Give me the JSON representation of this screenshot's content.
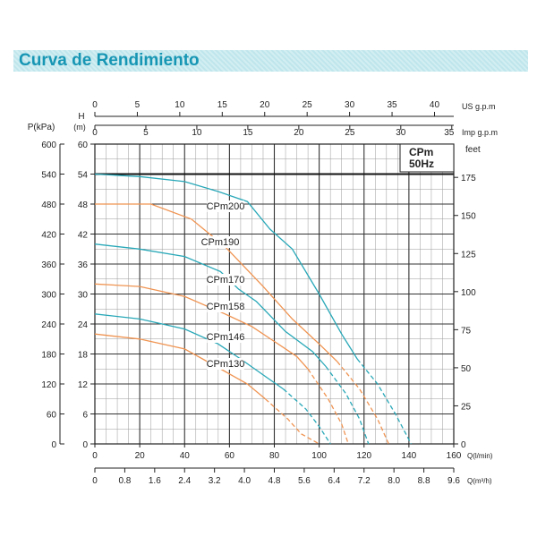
{
  "header": {
    "title": "Curva de Rendimiento"
  },
  "chart_data": {
    "type": "line",
    "model_box": [
      "CPm",
      "50Hz"
    ],
    "axes": {
      "q_lmin": {
        "label": "Q(l/min)",
        "ticks": [
          0,
          20,
          40,
          60,
          80,
          100,
          120,
          140,
          160
        ],
        "range": [
          0,
          160
        ]
      },
      "q_m3h": {
        "label": "Q(m³/h)",
        "ticks": [
          "0",
          "0.8",
          "1.6",
          "2.4",
          "3.2",
          "4.0",
          "4.8",
          "5.6",
          "6.4",
          "7.2",
          "8.0",
          "8.8",
          "9.6"
        ]
      },
      "us_gpm": {
        "label": "US  g.p.m",
        "ticks": [
          0,
          5,
          10,
          15,
          20,
          25,
          30,
          35,
          40
        ]
      },
      "imp_gpm": {
        "label": "Imp  g.p.m",
        "ticks": [
          0,
          5,
          10,
          15,
          20,
          25,
          30,
          35
        ]
      },
      "head_m": {
        "label": "H",
        "unit": "(m)",
        "ticks": [
          0,
          6,
          12,
          18,
          24,
          30,
          36,
          42,
          48,
          54,
          60
        ],
        "range": [
          0,
          60
        ]
      },
      "pressure_kpa": {
        "label": "P(kPa)",
        "ticks": [
          0,
          60,
          120,
          180,
          240,
          300,
          360,
          420,
          480,
          540,
          600
        ]
      },
      "feet": {
        "label": "feet",
        "ticks": [
          0,
          25,
          50,
          75,
          100,
          125,
          150,
          175
        ]
      }
    },
    "series": [
      {
        "name": "CPm200",
        "color": "#29a8b8",
        "solid": [
          [
            0,
            54
          ],
          [
            20,
            53.5
          ],
          [
            40,
            52.5
          ],
          [
            55,
            50.5
          ],
          [
            68,
            48.5
          ],
          [
            78,
            43
          ],
          [
            88,
            39
          ],
          [
            100,
            30
          ],
          [
            110,
            22
          ],
          [
            117,
            17
          ]
        ],
        "dashed": [
          [
            117,
            17
          ],
          [
            126,
            12
          ],
          [
            134,
            6
          ],
          [
            141,
            0
          ]
        ]
      },
      {
        "name": "CPm190",
        "color": "#f09452",
        "solid": [
          [
            0,
            48
          ],
          [
            25,
            48
          ],
          [
            43,
            45
          ],
          [
            58,
            39.5
          ],
          [
            75,
            31.5
          ],
          [
            88,
            25
          ],
          [
            100,
            20
          ],
          [
            108,
            16.5
          ]
        ],
        "dashed": [
          [
            108,
            16.5
          ],
          [
            118,
            11
          ],
          [
            126,
            5
          ],
          [
            131,
            0
          ]
        ]
      },
      {
        "name": "CPm170",
        "color": "#29a8b8",
        "solid": [
          [
            0,
            40
          ],
          [
            20,
            39
          ],
          [
            40,
            37.5
          ],
          [
            56,
            34.5
          ],
          [
            64,
            31
          ],
          [
            72,
            28.5
          ],
          [
            85,
            22.5
          ],
          [
            97,
            18.5
          ],
          [
            103,
            15.5
          ]
        ],
        "dashed": [
          [
            103,
            15.5
          ],
          [
            112,
            10
          ],
          [
            118,
            5
          ],
          [
            122,
            0
          ]
        ]
      },
      {
        "name": "CPm158",
        "color": "#f09452",
        "solid": [
          [
            0,
            32
          ],
          [
            20,
            31.5
          ],
          [
            40,
            29.5
          ],
          [
            58,
            26
          ],
          [
            70,
            23.5
          ],
          [
            80,
            20.5
          ],
          [
            90,
            17.5
          ],
          [
            95,
            15
          ]
        ],
        "dashed": [
          [
            95,
            15
          ],
          [
            104,
            9
          ],
          [
            110,
            4
          ],
          [
            113,
            0
          ]
        ]
      },
      {
        "name": "CPm146",
        "color": "#29a8b8",
        "solid": [
          [
            0,
            26
          ],
          [
            20,
            25
          ],
          [
            40,
            23
          ],
          [
            55,
            20
          ],
          [
            65,
            17
          ],
          [
            76,
            13.5
          ],
          [
            84,
            11
          ]
        ],
        "dashed": [
          [
            84,
            11
          ],
          [
            94,
            7
          ],
          [
            100,
            3.5
          ],
          [
            105,
            0
          ]
        ]
      },
      {
        "name": "CPm130",
        "color": "#f09452",
        "solid": [
          [
            0,
            22
          ],
          [
            20,
            21
          ],
          [
            40,
            19
          ],
          [
            58,
            14.5
          ],
          [
            68,
            12
          ],
          [
            76,
            9
          ]
        ],
        "dashed": [
          [
            76,
            9
          ],
          [
            86,
            5
          ],
          [
            92,
            2
          ],
          [
            100,
            0
          ]
        ]
      }
    ],
    "curve_labels": [
      "CPm200",
      "CPm190",
      "CPm170",
      "CPm158",
      "CPm146",
      "CPm130"
    ],
    "grid": true
  }
}
